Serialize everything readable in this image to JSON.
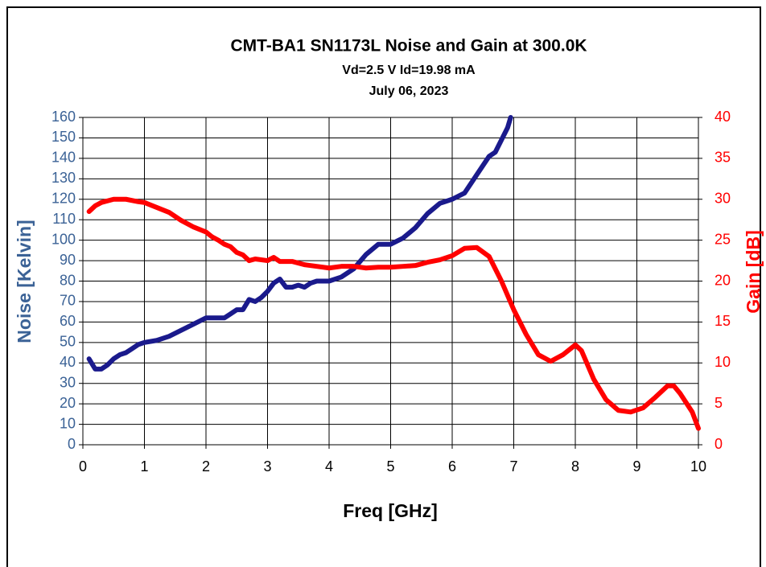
{
  "chart_data": {
    "type": "line",
    "title": "CMT-BA1 SN1173L Noise and Gain at 300.0K",
    "subtitle": "Vd=2.5 V Id=19.98 mA",
    "date": "July 06, 2023",
    "x_label": "Freq [GHz]",
    "y_label": "Noise [Kelvin]",
    "y2_label": "Gain [dB]",
    "xlim": [
      0,
      10
    ],
    "xticks": [
      0,
      1,
      2,
      3,
      4,
      5,
      6,
      7,
      8,
      9,
      10
    ],
    "ylim": [
      0,
      160
    ],
    "yticks": [
      0,
      10,
      20,
      30,
      40,
      50,
      60,
      70,
      80,
      90,
      100,
      110,
      120,
      130,
      140,
      150,
      160
    ],
    "y2lim": [
      0,
      40
    ],
    "y2ticks": [
      0,
      5,
      10,
      15,
      20,
      25,
      30,
      35,
      40
    ],
    "grid": true,
    "series": [
      {
        "name": "Noise",
        "color": "#1a1a8c",
        "axis": "y",
        "x": [
          0.1,
          0.2,
          0.3,
          0.4,
          0.5,
          0.6,
          0.7,
          0.8,
          0.9,
          1.0,
          1.2,
          1.4,
          1.6,
          1.8,
          2.0,
          2.2,
          2.3,
          2.4,
          2.5,
          2.6,
          2.7,
          2.8,
          2.9,
          3.0,
          3.1,
          3.2,
          3.3,
          3.4,
          3.5,
          3.6,
          3.7,
          3.8,
          4.0,
          4.2,
          4.4,
          4.6,
          4.8,
          5.0,
          5.2,
          5.4,
          5.6,
          5.8,
          6.0,
          6.2,
          6.4,
          6.6,
          6.7,
          6.8,
          6.9,
          6.95
        ],
        "values": [
          42,
          37,
          37,
          39,
          42,
          44,
          45,
          47,
          49,
          50,
          51,
          53,
          56,
          59,
          62,
          62,
          62,
          64,
          66,
          66,
          71,
          70,
          72,
          75,
          79,
          81,
          77,
          77,
          78,
          77,
          79,
          80,
          80,
          82,
          86,
          93,
          98,
          98,
          101,
          106,
          113,
          118,
          120,
          123,
          132,
          141,
          143,
          149,
          155,
          160
        ]
      },
      {
        "name": "Gain",
        "color": "#ff0000",
        "axis": "y2",
        "x": [
          0.1,
          0.2,
          0.3,
          0.5,
          0.7,
          0.9,
          1.0,
          1.2,
          1.4,
          1.6,
          1.8,
          2.0,
          2.1,
          2.2,
          2.3,
          2.4,
          2.5,
          2.6,
          2.7,
          2.8,
          3.0,
          3.1,
          3.2,
          3.4,
          3.6,
          3.8,
          4.0,
          4.2,
          4.4,
          4.6,
          4.8,
          5.0,
          5.2,
          5.4,
          5.6,
          5.8,
          6.0,
          6.2,
          6.4,
          6.6,
          6.8,
          7.0,
          7.2,
          7.4,
          7.6,
          7.8,
          8.0,
          8.1,
          8.3,
          8.5,
          8.7,
          8.9,
          9.1,
          9.3,
          9.5,
          9.6,
          9.7,
          9.9,
          10
        ],
        "values": [
          28.5,
          29.2,
          29.6,
          30,
          30,
          29.7,
          29.6,
          29,
          28.4,
          27.4,
          26.6,
          26,
          25.4,
          25,
          24.5,
          24.2,
          23.5,
          23.2,
          22.5,
          22.7,
          22.5,
          22.9,
          22.4,
          22.4,
          22,
          21.8,
          21.6,
          21.8,
          21.8,
          21.6,
          21.7,
          21.7,
          21.8,
          21.9,
          22.3,
          22.6,
          23.1,
          24,
          24.1,
          23,
          20,
          16.5,
          13.5,
          11,
          10.2,
          11,
          12.2,
          11.5,
          8,
          5.5,
          4.2,
          4,
          4.5,
          5.8,
          7.2,
          7.2,
          6.3,
          4,
          2
        ]
      }
    ]
  }
}
